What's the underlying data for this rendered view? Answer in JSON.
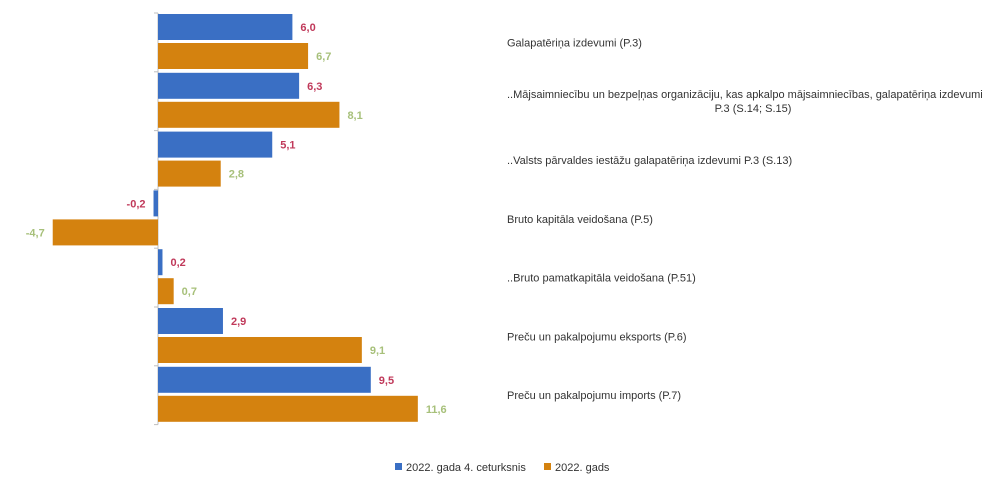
{
  "chart_data": {
    "type": "bar",
    "orientation": "horizontal",
    "categories": [
      "Galapatēriņa izdevumi (P.3)",
      "..Mājsaimniecību un bezpeļņas organizāciju, kas apkalpo mājsaimniecības, galapatēriņa izdevumi P.3 (S.14; S.15)",
      "..Valsts pārvaldes iestāžu galapatēriņa izdevumi P.3 (S.13)",
      "Bruto kapitāla veidošana (P.5)",
      "..Bruto pamatkapitāla veidošana (P.51)",
      "Preču un pakalpojumu eksports (P.6)",
      "Preču un pakalpojumu imports (P.7)"
    ],
    "category_lines": [
      [
        "Galapatēriņa izdevumi (P.3)"
      ],
      [
        "..Mājsaimniecību un bezpeļņas organizāciju, kas apkalpo mājsaimniecības, galapatēriņa izdevumi",
        "P.3 (S.14; S.15)"
      ],
      [
        "..Valsts pārvaldes iestāžu galapatēriņa izdevumi P.3 (S.13)"
      ],
      [
        "Bruto kapitāla veidošana (P.5)"
      ],
      [
        "..Bruto pamatkapitāla veidošana (P.51)"
      ],
      [
        "Preču un pakalpojumu eksports (P.6)"
      ],
      [
        "Preču un pakalpojumu imports (P.7)"
      ]
    ],
    "series": [
      {
        "name": "2022. gada 4. ceturksnis",
        "color": "#3a6fc4",
        "label_color": "#c0395a",
        "values": [
          6.0,
          6.3,
          5.1,
          -0.2,
          0.2,
          2.9,
          9.5
        ],
        "labels": [
          "6,0",
          "6,3",
          "5,1",
          "-0,2",
          "0,2",
          "2,9",
          "9,5"
        ]
      },
      {
        "name": "2022. gads",
        "color": "#d4820f",
        "label_color": "#a7c07a",
        "values": [
          6.7,
          8.1,
          2.8,
          -4.7,
          0.7,
          9.1,
          11.6
        ],
        "labels": [
          "6,7",
          "8,1",
          "2,8",
          "-4,7",
          "0,7",
          "9,1",
          "11,6"
        ]
      }
    ],
    "legend_position": "bottom"
  }
}
